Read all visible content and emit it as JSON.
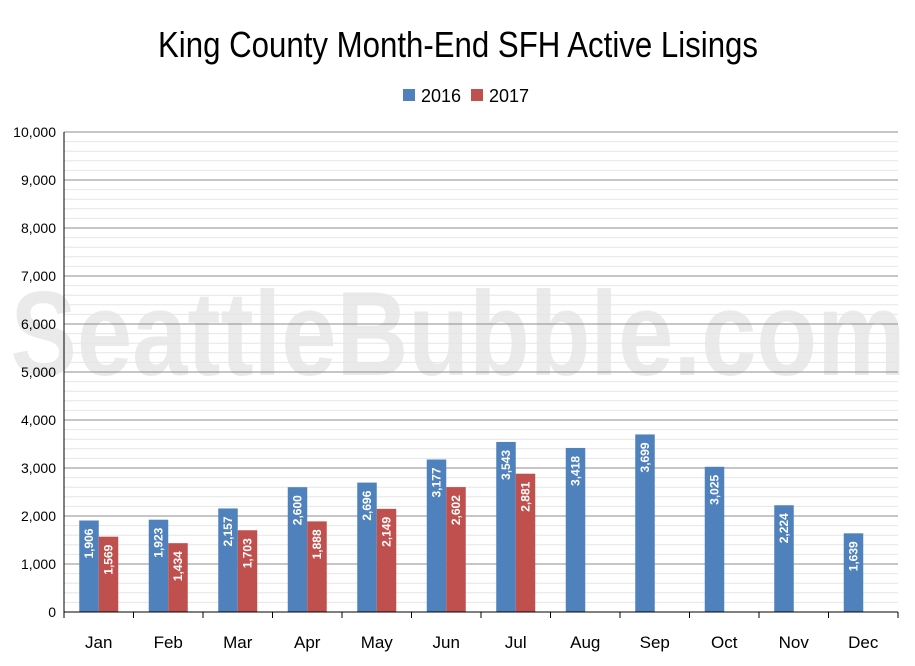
{
  "chart_data": {
    "type": "bar",
    "title": "King County Month-End SFH Active Lisings",
    "watermark": "SeattleBubble.com",
    "categories": [
      "Jan",
      "Feb",
      "Mar",
      "Apr",
      "May",
      "Jun",
      "Jul",
      "Aug",
      "Sep",
      "Oct",
      "Nov",
      "Dec"
    ],
    "series": [
      {
        "name": "2016",
        "color": "#4f81bd",
        "values": [
          1906,
          1923,
          2157,
          2600,
          2696,
          3177,
          3543,
          3418,
          3699,
          3025,
          2224,
          1639
        ]
      },
      {
        "name": "2017",
        "color": "#c0504d",
        "values": [
          1569,
          1434,
          1703,
          1888,
          2149,
          2602,
          2881,
          null,
          null,
          null,
          null,
          null
        ]
      }
    ],
    "ylim": [
      0,
      10000
    ],
    "yticks": [
      "0",
      "1,000",
      "2,000",
      "3,000",
      "4,000",
      "5,000",
      "6,000",
      "7,000",
      "8,000",
      "9,000",
      "10,000"
    ],
    "legend_position": "top-center",
    "grid": true
  }
}
